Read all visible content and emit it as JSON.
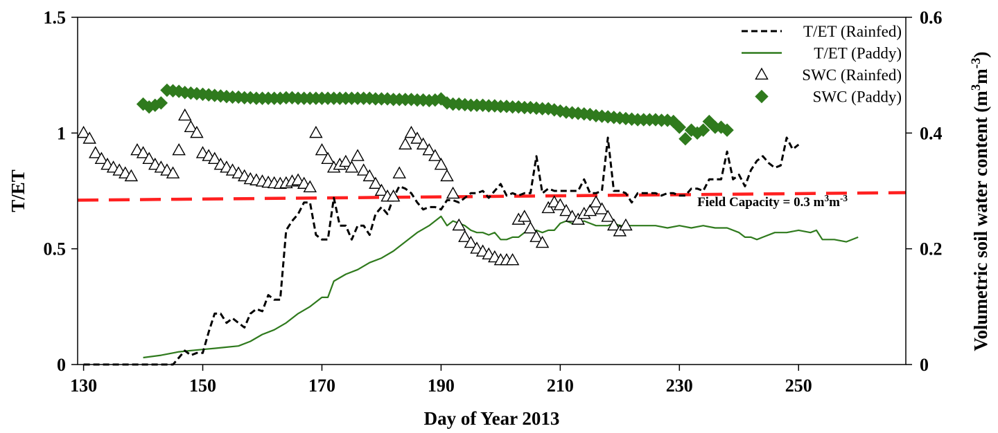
{
  "chart_data": {
    "type": "line",
    "xlabel": "Day of Year 2013",
    "ylabel_left": "T/ET",
    "ylabel_right_parts": [
      "Volumetric soil water content (m",
      "3",
      "m",
      "-3",
      ")"
    ],
    "xlim": [
      129,
      268
    ],
    "ylim_left": [
      0,
      1.5
    ],
    "ylim_right": [
      0,
      0.6
    ],
    "x_ticks": [
      "130",
      "150",
      "170",
      "190",
      "210",
      "230",
      "250"
    ],
    "y_ticks_left": [
      "0",
      "0.5",
      "1",
      "1.5"
    ],
    "y_ticks_right": [
      "0",
      "0.2",
      "0.4",
      "0.6"
    ],
    "grid": false,
    "legend_position": "top-right",
    "annotation": {
      "parts": [
        "Field Capacity = 0.3 m",
        "3",
        "m",
        "-3"
      ],
      "x": 253,
      "y": 0.3
    },
    "series": [
      {
        "name": "T/ET (Rainfed)",
        "axis": "left",
        "style": "dashed",
        "color": "#000000",
        "x": [
          130,
          133,
          136,
          139,
          142,
          145,
          146,
          147,
          148,
          149,
          150,
          151,
          152,
          153,
          154,
          155,
          156,
          157,
          158,
          159,
          160,
          161,
          162,
          163,
          164,
          165,
          166,
          167,
          168,
          169,
          170,
          171,
          172,
          173,
          174,
          175,
          176,
          177,
          178,
          179,
          180,
          181,
          182,
          183,
          184,
          185,
          186,
          187,
          188,
          189,
          190,
          191,
          192,
          193,
          194,
          195,
          196,
          197,
          198,
          199,
          200,
          201,
          202,
          203,
          204,
          205,
          206,
          207,
          208,
          209,
          210,
          211,
          212,
          213,
          214,
          215,
          216,
          217,
          218,
          219,
          220,
          221,
          222,
          223,
          224,
          225,
          226,
          227,
          228,
          229,
          230,
          231,
          232,
          233,
          234,
          235,
          236,
          237,
          238,
          239,
          240,
          241,
          242,
          243,
          244,
          245,
          246,
          247,
          248,
          249,
          250
        ],
        "y": [
          0,
          0,
          0,
          0,
          0,
          0,
          0.03,
          0.06,
          0.04,
          0.05,
          0.05,
          0.14,
          0.22,
          0.22,
          0.18,
          0.2,
          0.18,
          0.16,
          0.22,
          0.24,
          0.23,
          0.3,
          0.28,
          0.28,
          0.58,
          0.62,
          0.65,
          0.7,
          0.7,
          0.56,
          0.54,
          0.54,
          0.72,
          0.6,
          0.6,
          0.54,
          0.6,
          0.6,
          0.56,
          0.65,
          0.68,
          0.65,
          0.72,
          0.77,
          0.76,
          0.74,
          0.7,
          0.67,
          0.68,
          0.68,
          0.67,
          0.71,
          0.71,
          0.7,
          0.72,
          0.74,
          0.74,
          0.75,
          0.72,
          0.75,
          0.78,
          0.73,
          0.74,
          0.73,
          0.74,
          0.74,
          0.9,
          0.74,
          0.76,
          0.75,
          0.75,
          0.75,
          0.75,
          0.75,
          0.8,
          0.74,
          0.74,
          0.75,
          0.98,
          0.75,
          0.75,
          0.74,
          0.7,
          0.74,
          0.74,
          0.74,
          0.74,
          0.73,
          0.74,
          0.74,
          0.73,
          0.73,
          0.76,
          0.76,
          0.75,
          0.8,
          0.8,
          0.8,
          0.92,
          0.8,
          0.82,
          0.77,
          0.84,
          0.88,
          0.9,
          0.87,
          0.85,
          0.86,
          0.98,
          0.93,
          0.95
        ]
      },
      {
        "name": "T/ET (Paddy)",
        "axis": "left",
        "style": "solid",
        "color": "#2f7a1d",
        "x": [
          140,
          143,
          146,
          148,
          150,
          152,
          154,
          156,
          158,
          160,
          162,
          164,
          166,
          168,
          170,
          171,
          172,
          174,
          176,
          178,
          180,
          182,
          184,
          186,
          188,
          190,
          191,
          192,
          194,
          195,
          196,
          197,
          198,
          199,
          200,
          201,
          202,
          203,
          204,
          205,
          206,
          207,
          208,
          209,
          210,
          211,
          212,
          213,
          214,
          215,
          216,
          217,
          218,
          219,
          220,
          222,
          224,
          226,
          228,
          230,
          232,
          234,
          236,
          238,
          240,
          241,
          242,
          243,
          244,
          246,
          248,
          250,
          252,
          253,
          254,
          256,
          258,
          260
        ],
        "y": [
          0.03,
          0.04,
          0.055,
          0.06,
          0.065,
          0.07,
          0.075,
          0.08,
          0.1,
          0.13,
          0.15,
          0.18,
          0.22,
          0.25,
          0.29,
          0.29,
          0.36,
          0.39,
          0.41,
          0.44,
          0.46,
          0.49,
          0.53,
          0.57,
          0.6,
          0.64,
          0.6,
          0.62,
          0.6,
          0.58,
          0.57,
          0.57,
          0.56,
          0.57,
          0.54,
          0.54,
          0.55,
          0.55,
          0.57,
          0.57,
          0.58,
          0.57,
          0.58,
          0.58,
          0.61,
          0.62,
          0.61,
          0.61,
          0.62,
          0.61,
          0.6,
          0.6,
          0.6,
          0.61,
          0.6,
          0.6,
          0.6,
          0.6,
          0.59,
          0.6,
          0.59,
          0.6,
          0.59,
          0.59,
          0.57,
          0.55,
          0.55,
          0.54,
          0.55,
          0.57,
          0.57,
          0.58,
          0.57,
          0.58,
          0.54,
          0.54,
          0.53,
          0.55
        ]
      },
      {
        "name": "SWC (Rainfed)",
        "axis": "right",
        "style": "open-triangle",
        "color": "#000000",
        "x": [
          130,
          131,
          132,
          133,
          134,
          135,
          136,
          137,
          138,
          139,
          140,
          141,
          142,
          143,
          144,
          145,
          146,
          147,
          148,
          149,
          150,
          151,
          152,
          153,
          154,
          155,
          156,
          157,
          158,
          159,
          160,
          161,
          162,
          163,
          164,
          165,
          166,
          167,
          168,
          169,
          170,
          171,
          172,
          173,
          174,
          175,
          176,
          177,
          178,
          179,
          180,
          181,
          182,
          183,
          184,
          185,
          186,
          187,
          188,
          189,
          190,
          191,
          192,
          193,
          194,
          195,
          196,
          197,
          198,
          199,
          200,
          201,
          202,
          203,
          204,
          205,
          206,
          207,
          208,
          209,
          210,
          211,
          212,
          213,
          214,
          215,
          216,
          217,
          218,
          219,
          220,
          221
        ],
        "y": [
          0.4,
          0.39,
          0.365,
          0.355,
          0.345,
          0.34,
          0.335,
          0.33,
          0.325,
          0.37,
          0.365,
          0.355,
          0.345,
          0.34,
          0.335,
          0.33,
          0.37,
          0.43,
          0.41,
          0.4,
          0.365,
          0.36,
          0.355,
          0.345,
          0.34,
          0.335,
          0.33,
          0.325,
          0.32,
          0.318,
          0.316,
          0.314,
          0.313,
          0.312,
          0.313,
          0.316,
          0.318,
          0.312,
          0.306,
          0.4,
          0.37,
          0.355,
          0.34,
          0.345,
          0.35,
          0.34,
          0.36,
          0.335,
          0.325,
          0.312,
          0.3,
          0.29,
          0.29,
          0.33,
          0.38,
          0.4,
          0.39,
          0.38,
          0.37,
          0.36,
          0.345,
          0.325,
          0.295,
          0.24,
          0.22,
          0.21,
          0.2,
          0.195,
          0.19,
          0.185,
          0.18,
          0.18,
          0.18,
          0.25,
          0.255,
          0.235,
          0.22,
          0.21,
          0.27,
          0.28,
          0.275,
          0.265,
          0.255,
          0.25,
          0.26,
          0.265,
          0.28,
          0.268,
          0.255,
          0.24,
          0.23,
          0.24
        ]
      },
      {
        "name": "SWC (Paddy)",
        "axis": "right",
        "style": "filled-diamond",
        "color": "#2f7a1d",
        "x": [
          140,
          141,
          142,
          143,
          144,
          145,
          146,
          147,
          148,
          149,
          150,
          151,
          152,
          153,
          154,
          155,
          156,
          157,
          158,
          159,
          160,
          161,
          162,
          163,
          164,
          165,
          166,
          167,
          168,
          169,
          170,
          171,
          172,
          173,
          174,
          175,
          176,
          177,
          178,
          179,
          180,
          181,
          182,
          183,
          184,
          185,
          186,
          187,
          188,
          189,
          190,
          191,
          192,
          193,
          194,
          195,
          196,
          197,
          198,
          199,
          200,
          201,
          202,
          203,
          204,
          205,
          206,
          207,
          208,
          209,
          210,
          211,
          212,
          213,
          214,
          215,
          216,
          217,
          218,
          219,
          220,
          221,
          222,
          223,
          224,
          225,
          226,
          227,
          228,
          229,
          230,
          231,
          232,
          233,
          234,
          235,
          236,
          237,
          238
        ],
        "y": [
          0.45,
          0.445,
          0.448,
          0.452,
          0.474,
          0.473,
          0.472,
          0.47,
          0.469,
          0.468,
          0.467,
          0.466,
          0.465,
          0.464,
          0.463,
          0.462,
          0.462,
          0.461,
          0.461,
          0.46,
          0.46,
          0.46,
          0.46,
          0.46,
          0.461,
          0.461,
          0.46,
          0.46,
          0.46,
          0.46,
          0.46,
          0.46,
          0.46,
          0.46,
          0.46,
          0.46,
          0.46,
          0.46,
          0.46,
          0.459,
          0.459,
          0.459,
          0.458,
          0.458,
          0.458,
          0.458,
          0.457,
          0.457,
          0.456,
          0.457,
          0.459,
          0.452,
          0.45,
          0.45,
          0.449,
          0.448,
          0.448,
          0.448,
          0.447,
          0.447,
          0.446,
          0.446,
          0.445,
          0.445,
          0.444,
          0.444,
          0.443,
          0.442,
          0.442,
          0.44,
          0.438,
          0.436,
          0.435,
          0.434,
          0.433,
          0.432,
          0.43,
          0.429,
          0.428,
          0.427,
          0.426,
          0.425,
          0.424,
          0.423,
          0.423,
          0.423,
          0.423,
          0.422,
          0.422,
          0.42,
          0.41,
          0.39,
          0.405,
          0.4,
          0.405,
          0.42,
          0.41,
          0.41,
          0.405
        ]
      },
      {
        "name": "Field Capacity",
        "legend": false,
        "axis": "right",
        "style": "long-dash",
        "color": "#ff2020",
        "x": [
          129,
          268
        ],
        "y": [
          0.284,
          0.297
        ]
      }
    ]
  }
}
